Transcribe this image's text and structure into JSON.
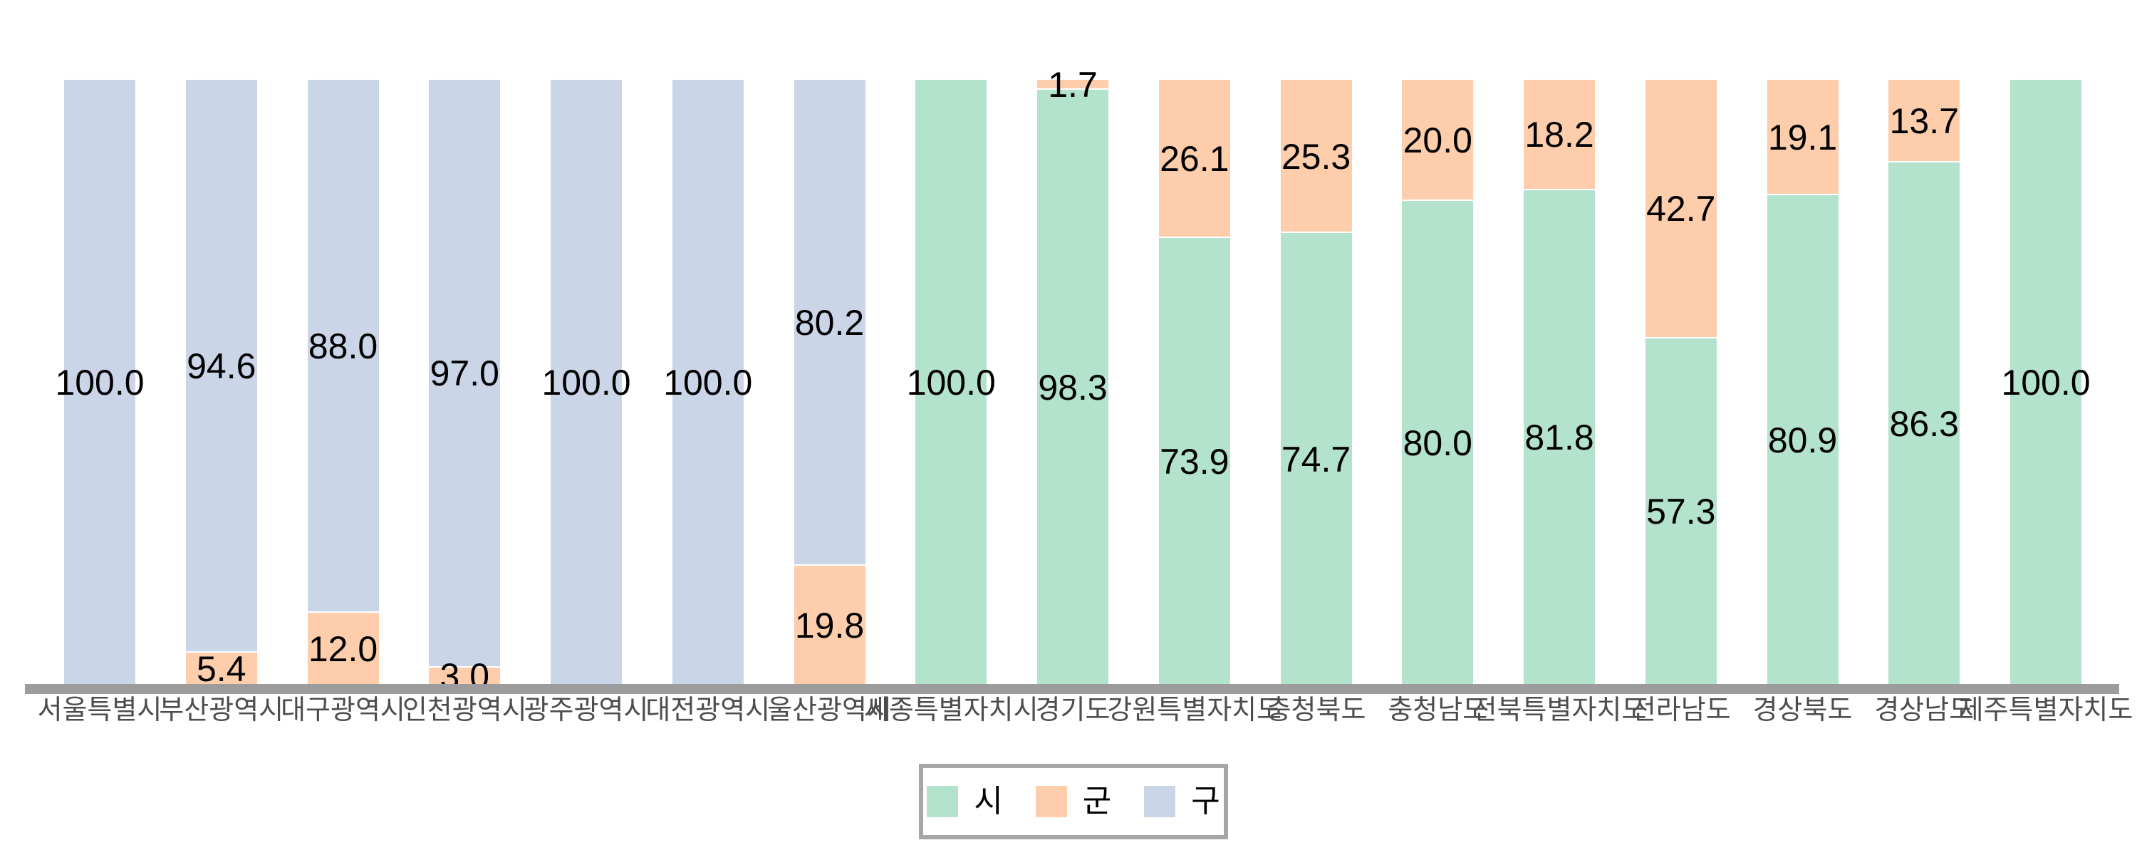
{
  "chart_data": {
    "type": "bar",
    "stacked": true,
    "orientation": "vertical",
    "title": "",
    "xlabel": "",
    "ylabel": "",
    "ylim": [
      0,
      100
    ],
    "grid": false,
    "legend_position": "bottom-center",
    "value_labels": "each segment labeled with value to one decimal",
    "categories": [
      "서울특별시",
      "부산광역시",
      "대구광역시",
      "인천광역시",
      "광주광역시",
      "대전광역시",
      "울산광역시",
      "세종특별자치시",
      "경기도",
      "강원특별자치도",
      "충청북도",
      "충청남도",
      "전북특별자치도",
      "전라남도",
      "경상북도",
      "경상남도",
      "제주특별자치도"
    ],
    "series": [
      {
        "name": "시",
        "color": "#b3e2cd",
        "values": [
          0,
          0,
          0,
          0,
          0,
          0,
          0,
          100.0,
          98.3,
          73.9,
          74.7,
          80.0,
          81.8,
          57.3,
          80.9,
          86.3,
          100.0
        ]
      },
      {
        "name": "군",
        "color": "#fdcdac",
        "values": [
          0,
          5.4,
          12.0,
          3.0,
          0,
          0,
          19.8,
          0,
          1.7,
          26.1,
          25.3,
          20.0,
          18.2,
          42.7,
          19.1,
          13.7,
          0
        ]
      },
      {
        "name": "구",
        "color": "#cbd5e8",
        "values": [
          100.0,
          94.6,
          88.0,
          97.0,
          100.0,
          100.0,
          80.2,
          0,
          0,
          0,
          0,
          0,
          0,
          0,
          0,
          0,
          0
        ]
      }
    ],
    "colors": {
      "axis_line": "#9c9c9c",
      "legend_border": "#a6a6a6",
      "tick_label": "#4d4d4d",
      "value_label": "#000000",
      "background": "#ffffff"
    }
  }
}
